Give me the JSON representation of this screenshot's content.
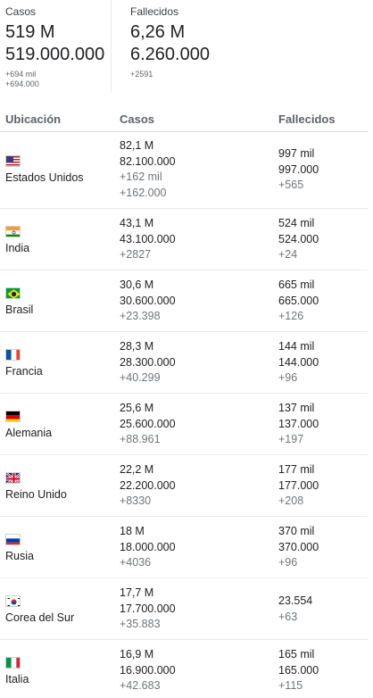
{
  "summary": {
    "cases": {
      "label": "Casos",
      "short": "519 M",
      "full": "519.000.000",
      "new_short": "+694 mil",
      "new_full": "+694.000"
    },
    "deaths": {
      "label": "Fallecidos",
      "short": "6,26 M",
      "full": "6.260.000",
      "new_full": "+2591"
    }
  },
  "table": {
    "headers": {
      "location": "Ubicación",
      "cases": "Casos",
      "deaths": "Fallecidos"
    },
    "rows": [
      {
        "flag": "us-flag",
        "country": "Estados Unidos",
        "cases": [
          "82,1 M",
          "82.100.000",
          "+162 mil",
          "+162.000"
        ],
        "deaths": [
          "997 mil",
          "997.000",
          "+565"
        ]
      },
      {
        "flag": "in-flag",
        "country": "India",
        "cases": [
          "43,1 M",
          "43.100.000",
          "+2827"
        ],
        "deaths": [
          "524 mil",
          "524.000",
          "+24"
        ]
      },
      {
        "flag": "br-flag",
        "country": "Brasil",
        "cases": [
          "30,6 M",
          "30.600.000",
          "+23.398"
        ],
        "deaths": [
          "665 mil",
          "665.000",
          "+126"
        ]
      },
      {
        "flag": "fr-flag",
        "country": "Francia",
        "cases": [
          "28,3 M",
          "28.300.000",
          "+40.299"
        ],
        "deaths": [
          "144 mil",
          "144.000",
          "+96"
        ]
      },
      {
        "flag": "de-flag",
        "country": "Alemania",
        "cases": [
          "25,6 M",
          "25.600.000",
          "+88.961"
        ],
        "deaths": [
          "137 mil",
          "137.000",
          "+197"
        ]
      },
      {
        "flag": "gb-flag",
        "country": "Reino Unido",
        "cases": [
          "22,2 M",
          "22.200.000",
          "+8330"
        ],
        "deaths": [
          "177 mil",
          "177.000",
          "+208"
        ]
      },
      {
        "flag": "ru-flag",
        "country": "Rusia",
        "cases": [
          "18 M",
          "18.000.000",
          "+4036"
        ],
        "deaths": [
          "370 mil",
          "370.000",
          "+96"
        ]
      },
      {
        "flag": "kr-flag",
        "country": "Corea del Sur",
        "cases": [
          "17,7 M",
          "17.700.000",
          "+35.883"
        ],
        "deaths": [
          "23.554",
          "+63"
        ]
      },
      {
        "flag": "it-flag",
        "country": "Italia",
        "cases": [
          "16,9 M",
          "16.900.000",
          "+42.683"
        ],
        "deaths": [
          "165 mil",
          "165.000",
          "+115"
        ]
      }
    ]
  }
}
